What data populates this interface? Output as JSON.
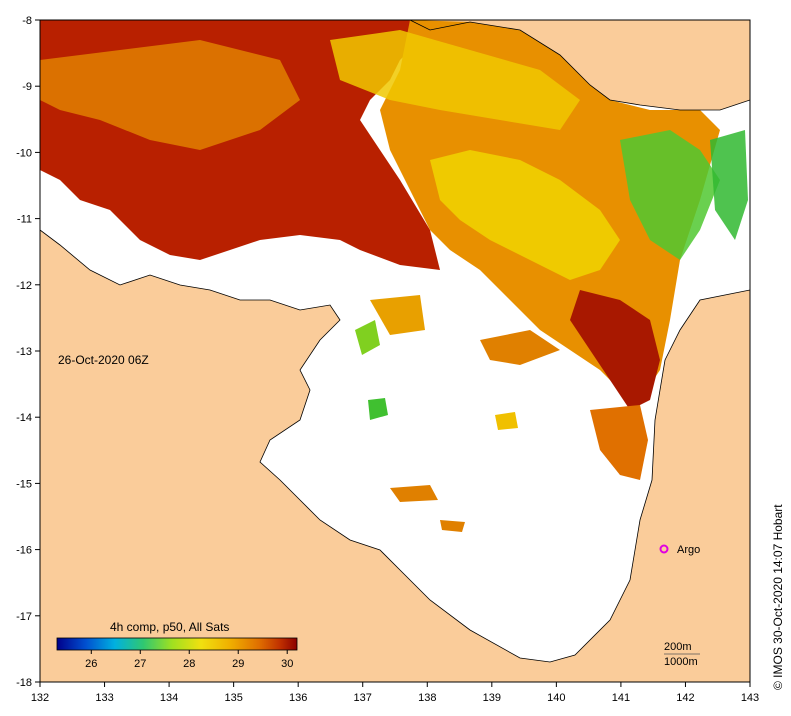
{
  "map": {
    "lon_ticks": [
      "132",
      "133",
      "134",
      "135",
      "136",
      "137",
      "138",
      "139",
      "140",
      "141",
      "142",
      "143"
    ],
    "lat_ticks": [
      "-8",
      "-9",
      "-10",
      "-11",
      "-12",
      "-13",
      "-14",
      "-15",
      "-16",
      "-17",
      "-18"
    ],
    "timestamp": "26-Oct-2020 06Z",
    "argo_label": "Argo",
    "depth_legend": [
      "200m",
      "1000m"
    ],
    "credit": "© IMOS 30-Oct-2020 14:07 Hobart"
  },
  "colorbar": {
    "title": "4h comp, p50, All Sats",
    "ticks": [
      "26",
      "27",
      "28",
      "29",
      "30"
    ],
    "colors": [
      "#00008b",
      "#0050d0",
      "#00b0e0",
      "#30c870",
      "#a0e020",
      "#f0e010",
      "#f0b000",
      "#e07000",
      "#c03000",
      "#8b0000"
    ]
  },
  "colors": {
    "land": "#facc9a",
    "no_data": "#ffffff",
    "warm": "#b82000",
    "mid": "#e89000",
    "cool": "#f0d800",
    "cold": "#50d030",
    "argo": "#e000e0"
  }
}
